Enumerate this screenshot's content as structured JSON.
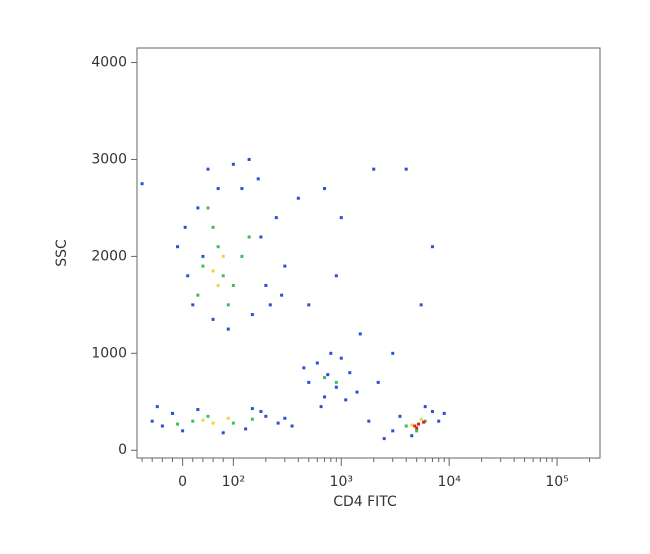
{
  "chart_data": {
    "type": "scatter",
    "x_label": "CD4 FITC",
    "y_label": "SSC",
    "xscale": "biexponential",
    "linthresh": 100,
    "xlim": [
      -90,
      250000
    ],
    "ylim": [
      -80,
      4150
    ],
    "xticks": [
      0,
      {
        "value": 100,
        "label": "10²"
      },
      {
        "value": 1000,
        "label": "10³"
      },
      {
        "value": 10000,
        "label": "10⁴"
      },
      {
        "value": 100000,
        "label": "10⁵"
      }
    ],
    "xminorticks": [
      -80,
      -60,
      -40,
      -20,
      20,
      40,
      60,
      80,
      200,
      300,
      400,
      500,
      600,
      700,
      800,
      900,
      2000,
      3000,
      4000,
      5000,
      6000,
      7000,
      8000,
      9000,
      20000,
      30000,
      40000,
      50000,
      60000,
      70000,
      80000,
      90000,
      200000
    ],
    "yticks": [
      0,
      1000,
      2000,
      3000,
      4000
    ],
    "series": [
      {
        "color": "#2b4fd6",
        "x": [
          10,
          30,
          50,
          120,
          180,
          200,
          150,
          20,
          60,
          100,
          -10,
          250,
          300,
          400,
          140,
          90,
          5,
          220,
          170,
          40,
          280,
          70,
          -60,
          -40,
          -20,
          0,
          30,
          130,
          200,
          260,
          300,
          -50,
          80,
          150,
          350,
          180,
          500,
          600,
          700,
          800,
          900,
          1200,
          1400,
          450,
          650,
          1000,
          750,
          1100,
          3000,
          3500,
          4500,
          7000,
          8000,
          2500,
          6000,
          9000,
          700,
          1000,
          2000,
          4000,
          7000,
          5500,
          3000,
          500,
          1500,
          -80,
          900,
          1800,
          2200
        ],
        "y": [
          1800,
          2500,
          2900,
          2700,
          2200,
          1700,
          1400,
          1500,
          1350,
          2950,
          2100,
          2400,
          1900,
          2600,
          3000,
          1250,
          2300,
          1500,
          2800,
          2000,
          1600,
          2700,
          300,
          250,
          380,
          200,
          420,
          220,
          350,
          280,
          330,
          450,
          180,
          430,
          250,
          400,
          700,
          900,
          550,
          1000,
          650,
          800,
          600,
          850,
          450,
          950,
          780,
          520,
          200,
          350,
          150,
          400,
          300,
          120,
          450,
          380,
          2700,
          2400,
          2900,
          2900,
          2100,
          1500,
          1000,
          1500,
          1200,
          2750,
          1800,
          300,
          700
        ]
      },
      {
        "color": "#3bbf5a",
        "x": [
          40,
          70,
          100,
          60,
          120,
          30,
          80,
          140,
          50,
          90,
          20,
          50,
          100,
          150,
          -10,
          700,
          900,
          4000,
          6000,
          5000
        ],
        "y": [
          1900,
          2100,
          1700,
          2300,
          2000,
          1600,
          1800,
          2200,
          2500,
          1500,
          300,
          350,
          280,
          320,
          270,
          750,
          700,
          250,
          300,
          200
        ]
      },
      {
        "color": "#e8d83a",
        "x": [
          60,
          80,
          70,
          40,
          60,
          90,
          4500,
          5500
        ],
        "y": [
          1850,
          2000,
          1700,
          310,
          280,
          330,
          260,
          320
        ]
      },
      {
        "color": "#e02020",
        "x": [
          4800,
          5200,
          5000,
          5800
        ],
        "y": [
          250,
          270,
          230,
          290
        ]
      }
    ]
  }
}
